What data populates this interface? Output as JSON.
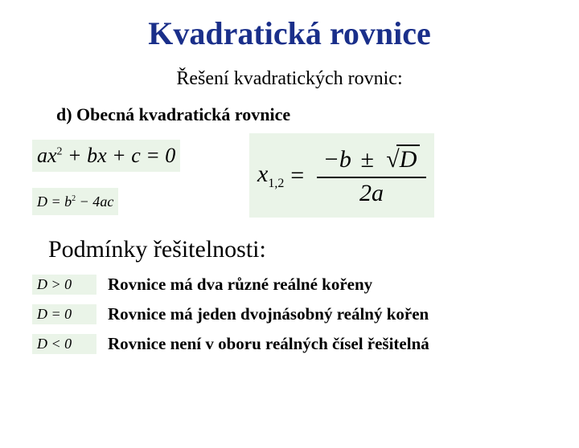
{
  "title": "Kvadratická rovnice",
  "subtitle": "Řešení kvadratických rovnic:",
  "section_d": "d) Obecná kvadratická rovnice",
  "equations": {
    "general": {
      "a": "a",
      "x": "x",
      "sq": "2",
      "b": "b",
      "c": "c"
    },
    "discriminant": "D = b² − 4ac",
    "roots_label": "x",
    "roots_sub": "1,2",
    "roots_eq": "=",
    "roots_neg_b": "−b",
    "roots_pm": "±",
    "roots_D": "D",
    "roots_den": "2a"
  },
  "cond_title": "Podmínky řešitelnosti:",
  "conditions": [
    {
      "sym": "D > 0",
      "text": "Rovnice má dva různé reálné kořeny"
    },
    {
      "sym": "D = 0",
      "text": "Rovnice má jeden dvojnásobný reálný kořen"
    },
    {
      "sym": "D < 0",
      "text": "Rovnice není v oboru reálných čísel řešitelná"
    }
  ],
  "colors": {
    "title": "#1a2f8a",
    "eq_bg": "#eaf4e8",
    "text": "#000000"
  }
}
